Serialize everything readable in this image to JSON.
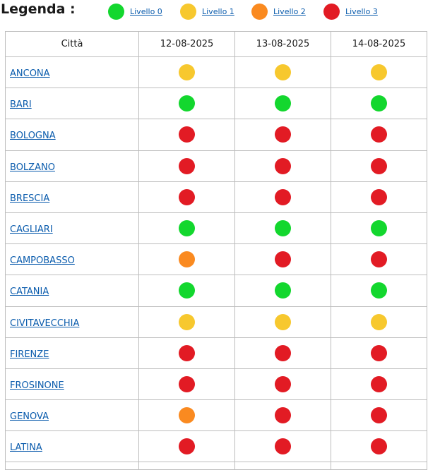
{
  "legend": {
    "title": "Legenda :",
    "items": [
      {
        "label": "Livello 0",
        "color": "#13d72e"
      },
      {
        "label": "Livello 1",
        "color": "#f7c82e"
      },
      {
        "label": "Livello 2",
        "color": "#fa8a20"
      },
      {
        "label": "Livello 3",
        "color": "#e21b24"
      }
    ]
  },
  "table": {
    "headers": [
      "Città",
      "12-08-2025",
      "13-08-2025",
      "14-08-2025"
    ],
    "rows": [
      {
        "city": "ANCONA",
        "levels": [
          1,
          1,
          1
        ]
      },
      {
        "city": "BARI",
        "levels": [
          0,
          0,
          0
        ]
      },
      {
        "city": "BOLOGNA",
        "levels": [
          3,
          3,
          3
        ]
      },
      {
        "city": "BOLZANO",
        "levels": [
          3,
          3,
          3
        ]
      },
      {
        "city": "BRESCIA",
        "levels": [
          3,
          3,
          3
        ]
      },
      {
        "city": "CAGLIARI",
        "levels": [
          0,
          0,
          0
        ]
      },
      {
        "city": "CAMPOBASSO",
        "levels": [
          2,
          3,
          3
        ]
      },
      {
        "city": "CATANIA",
        "levels": [
          0,
          0,
          0
        ]
      },
      {
        "city": "CIVITAVECCHIA",
        "levels": [
          1,
          1,
          1
        ]
      },
      {
        "city": "FIRENZE",
        "levels": [
          3,
          3,
          3
        ]
      },
      {
        "city": "FROSINONE",
        "levels": [
          3,
          3,
          3
        ]
      },
      {
        "city": "GENOVA",
        "levels": [
          2,
          3,
          3
        ]
      },
      {
        "city": "LATINA",
        "levels": [
          3,
          3,
          3
        ]
      }
    ]
  }
}
